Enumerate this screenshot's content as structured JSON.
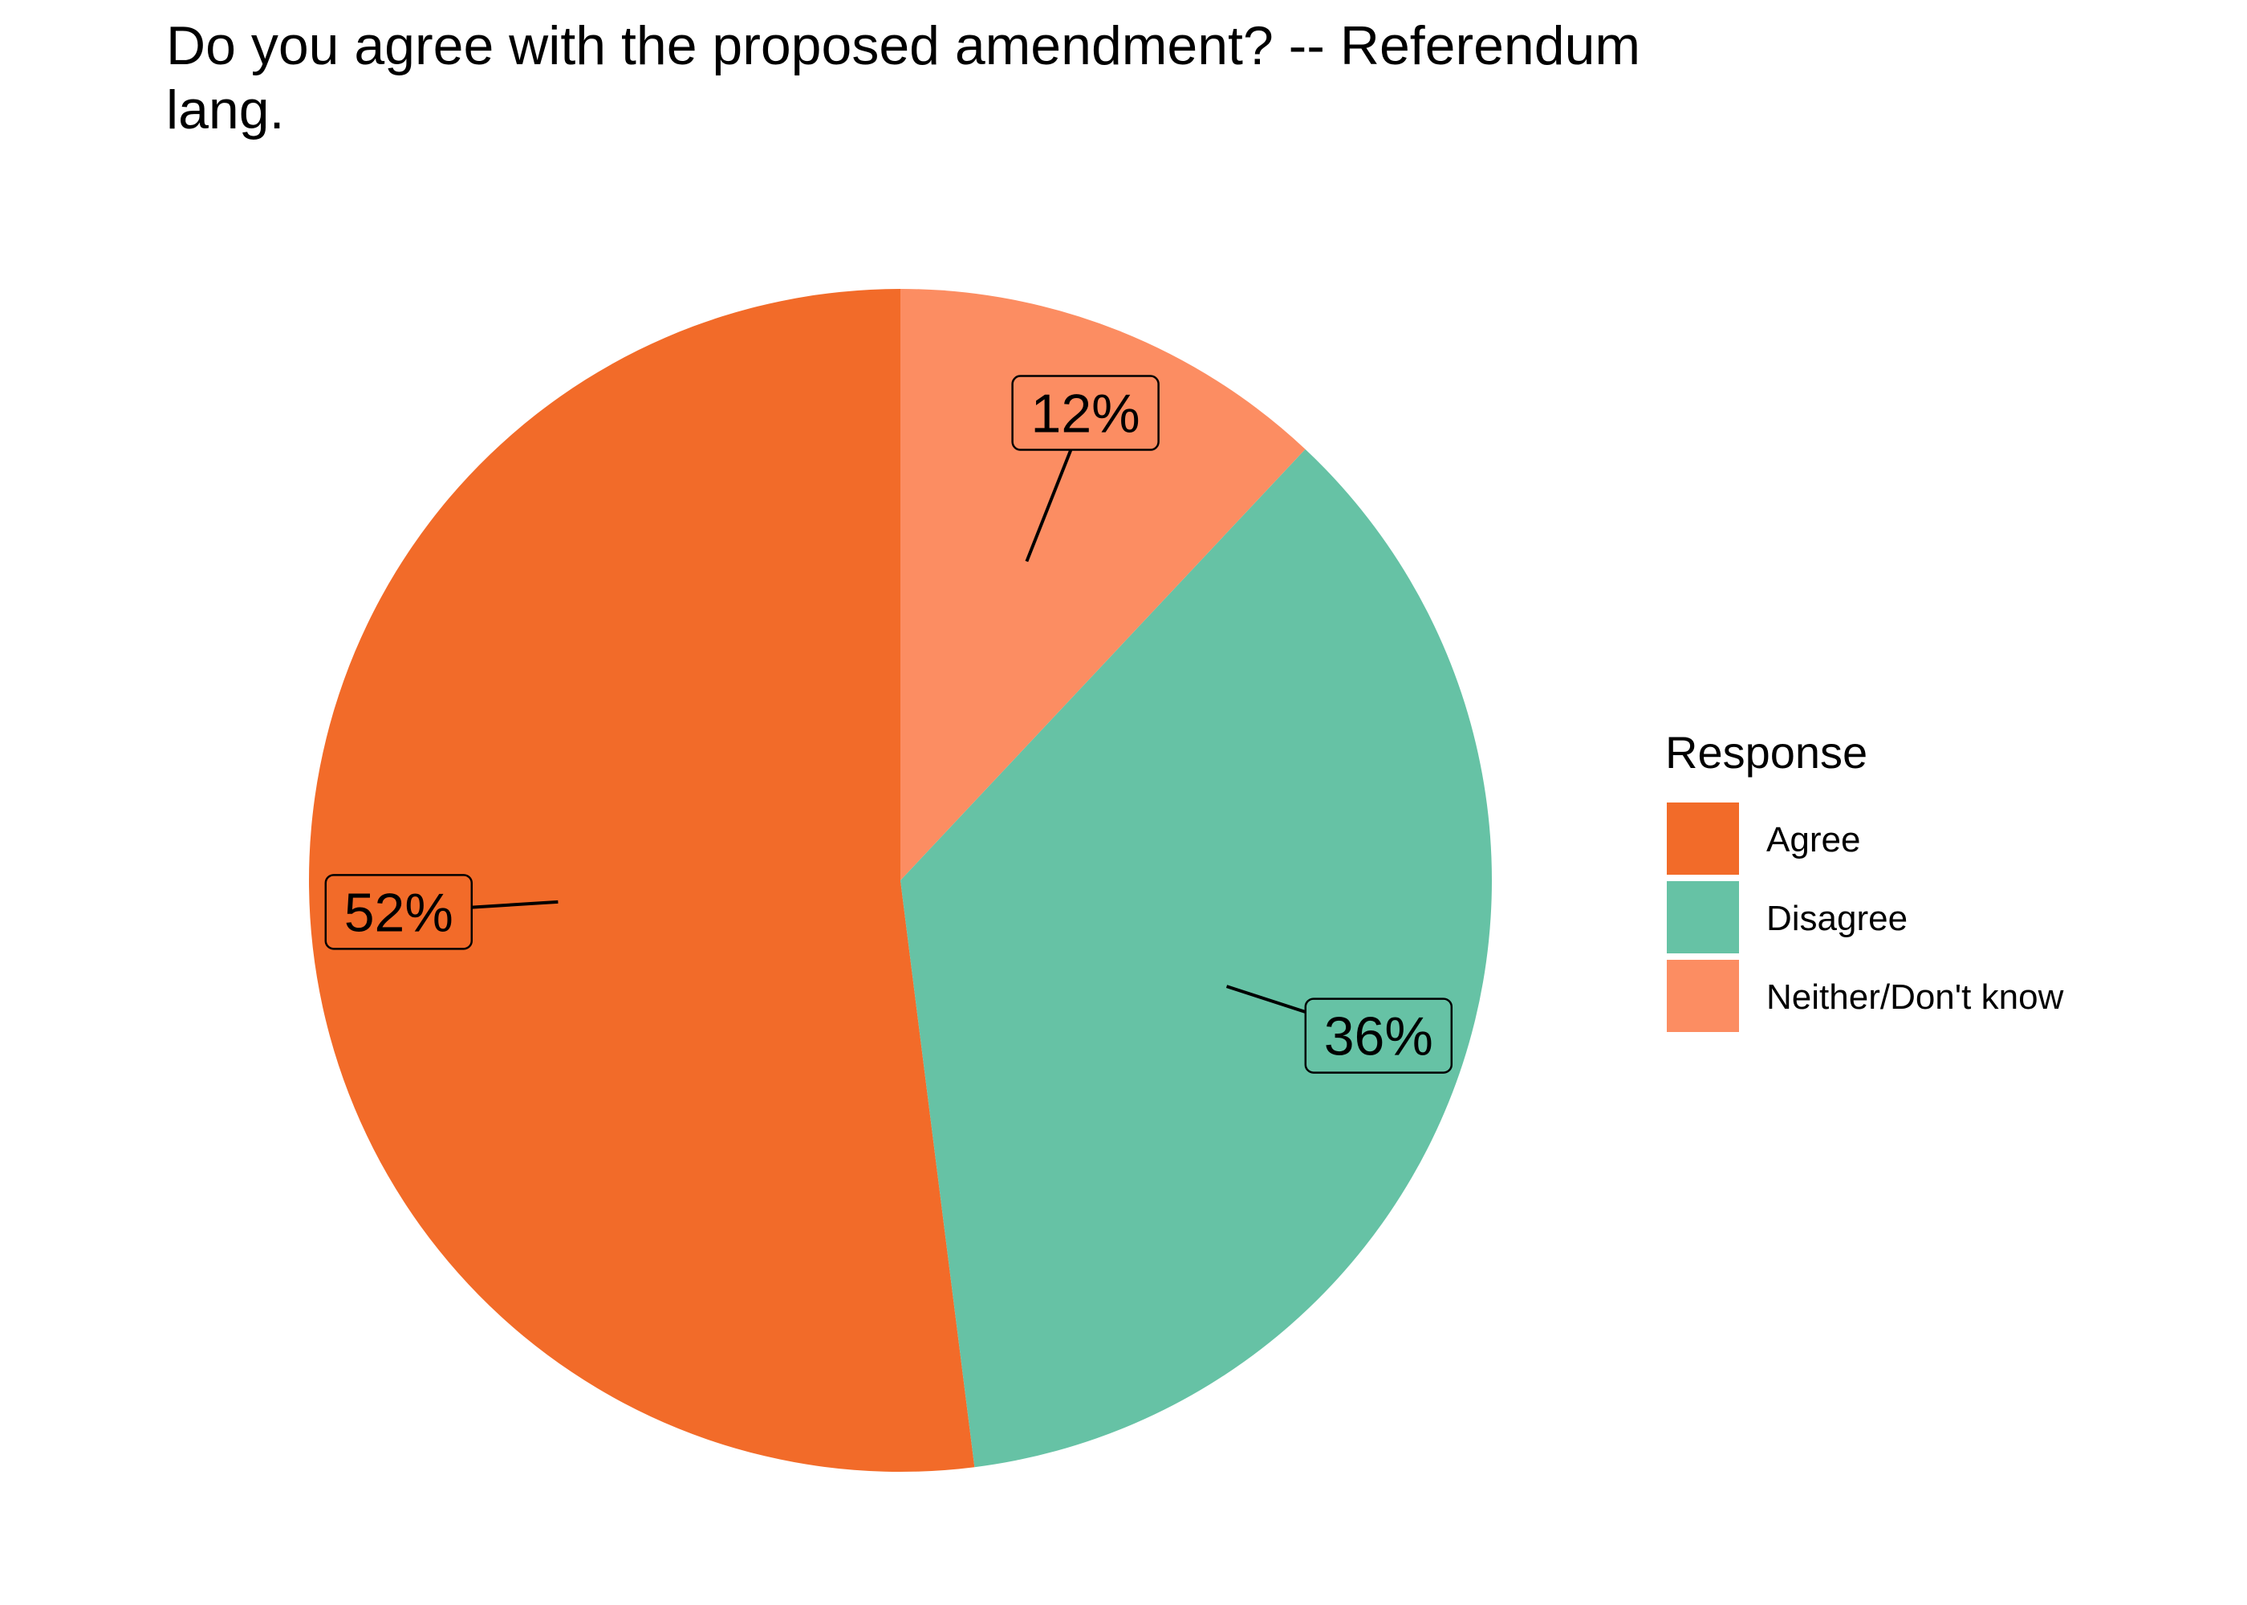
{
  "chart_data": {
    "type": "pie",
    "title_lines": [
      "Do you agree with the proposed amendment? -- Referendum",
      "lang."
    ],
    "legend_title": "Response",
    "legend_position": "right",
    "start": "top",
    "direction": "counterclockwise",
    "slices": [
      {
        "label": "Agree",
        "value": 52,
        "value_label": "52%",
        "color": "#F26B29"
      },
      {
        "label": "Disagree",
        "value": 36,
        "value_label": "36%",
        "color": "#66C2A5"
      },
      {
        "label": "Neither/Don't know",
        "value": 12,
        "value_label": "12%",
        "color": "#FC8D62"
      }
    ]
  }
}
